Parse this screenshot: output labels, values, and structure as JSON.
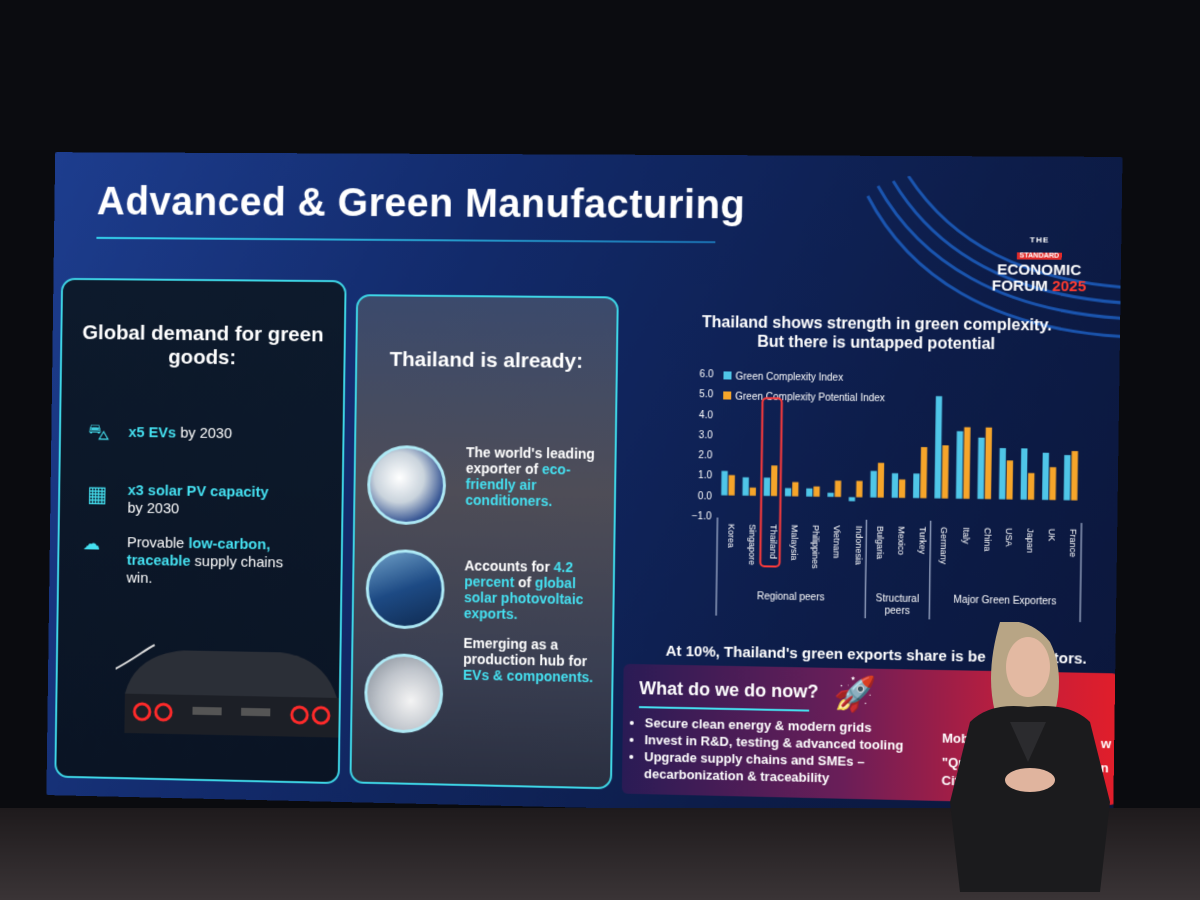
{
  "slide": {
    "title": "Advanced & Green Manufacturing",
    "logo": {
      "the": "THE",
      "standard": "STANDARD",
      "line1": "ECONOMIC",
      "line2": "FORUM",
      "year": "2025"
    }
  },
  "panel_demand": {
    "heading": "Global demand for green goods:",
    "items": [
      {
        "icon": "ev-car-icon",
        "highlight": "x5 EVs",
        "rest": " by 2030"
      },
      {
        "icon": "solar-panel-icon",
        "highlight": "x3 solar PV capacity",
        "rest": "by 2030"
      },
      {
        "icon": "co2-cloud-icon",
        "lead": "Provable ",
        "highlight": "low-carbon, traceable",
        "rest": " supply chains win."
      }
    ]
  },
  "panel_thailand": {
    "heading": "Thailand is already:",
    "items": [
      {
        "icon": "air-conditioner-technician-image",
        "text": "The world's leading exporter of ",
        "highlight": "eco-friendly air conditioners."
      },
      {
        "icon": "solar-panels-image",
        "text": "Accounts for ",
        "highlight": "4.2 percent",
        "text2": " of ",
        "highlight2": "global solar photovoltaic exports."
      },
      {
        "icon": "ev-charging-image",
        "text": "Emerging as a production hub for ",
        "highlight": "EVs & components."
      }
    ]
  },
  "chart_title_1": "Thailand shows strength in green complexity.",
  "chart_title_2": "But there is untapped potential",
  "chart_data": {
    "type": "bar",
    "categories": [
      "Korea",
      "Singapore",
      "Thailand",
      "Malaysia",
      "Philippines",
      "Vietnam",
      "Indonesia",
      "Bulgaria",
      "Mexico",
      "Turkey",
      "Germany",
      "Italy",
      "China",
      "USA",
      "Japan",
      "UK",
      "France"
    ],
    "series": [
      {
        "name": "Green Complexity Index",
        "color": "#4fc6e8",
        "values": [
          1.2,
          0.9,
          0.9,
          0.4,
          0.4,
          0.2,
          -0.2,
          1.3,
          1.2,
          1.2,
          5.0,
          3.3,
          3.0,
          2.5,
          2.5,
          2.3,
          2.2
        ]
      },
      {
        "name": "Green Complexity Potential Index",
        "color": "#f6a52a",
        "values": [
          1.0,
          0.4,
          1.5,
          0.7,
          0.5,
          0.8,
          0.8,
          1.7,
          0.9,
          2.5,
          2.6,
          3.5,
          3.5,
          1.9,
          1.3,
          1.6,
          2.4
        ]
      }
    ],
    "ylim": [
      -1.0,
      6.0
    ],
    "yticks": [
      "6.0",
      "5.0",
      "4.0",
      "3.0",
      "2.0",
      "1.0",
      "0.0",
      "−1.0"
    ],
    "highlight_category": "Thailand",
    "groups": [
      {
        "label": "Regional peers",
        "from": 0,
        "to": 6
      },
      {
        "label": "Structural peers",
        "from": 7,
        "to": 9
      },
      {
        "label": "Major Green Exporters",
        "from": 10,
        "to": 16
      }
    ],
    "legend_position": "top-left"
  },
  "chart_note": "At 10%, Thailand's green exports share is be",
  "chart_note_end": "petitors.",
  "cta": {
    "heading": "What do we do now?",
    "items": [
      "Secure clean energy & modern grids",
      "Invest in R&D, testing & advanced tooling",
      "Upgrade supply chains and SMEs – decarbonization & traceability"
    ],
    "fragments": [
      "Mob",
      "\"Qu",
      "Citi",
      "w",
      "n"
    ]
  }
}
